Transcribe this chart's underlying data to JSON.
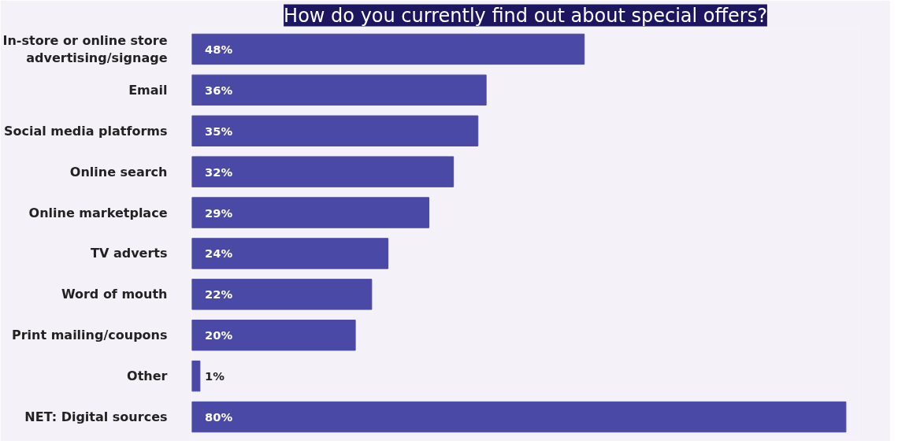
{
  "chart_data": {
    "type": "bar",
    "orientation": "horizontal",
    "title": "How do you currently find out about special offers?",
    "categories": [
      "In-store or online store advertising/signage",
      "Email",
      "Social media platforms",
      "Online search",
      "Online marketplace",
      "TV adverts",
      "Word of mouth",
      "Print mailing/coupons",
      "Other",
      "NET: Digital sources"
    ],
    "values": [
      48,
      36,
      35,
      32,
      29,
      24,
      22,
      20,
      1,
      80
    ],
    "value_labels": [
      "48%",
      "36%",
      "35%",
      "32%",
      "29%",
      "24%",
      "22%",
      "20%",
      "1%",
      "80%"
    ],
    "color": "#4a4aa6",
    "grid": false
  }
}
